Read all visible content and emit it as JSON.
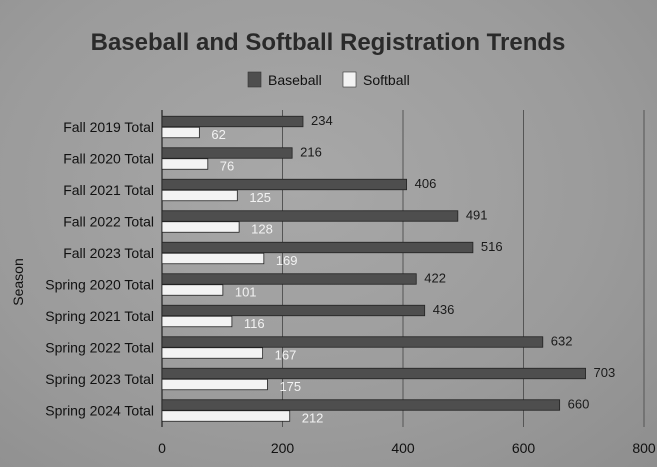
{
  "chart_data": {
    "type": "bar",
    "orientation": "horizontal",
    "title": "Baseball and Softball Registration Trends",
    "ylabel": "Season",
    "xlabel": "",
    "xlim": [
      0,
      800
    ],
    "xticks": [
      "0",
      "200",
      "400",
      "600",
      "800"
    ],
    "legend_position": "top-center",
    "categories": [
      "Fall 2019 Total",
      "Fall 2020 Total",
      "Fall 2021 Total",
      "Fall 2022 Total",
      "Fall 2023 Total",
      "Spring 2020 Total",
      "Spring 2021 Total",
      "Spring 2022 Total",
      "Spring 2023 Total",
      "Spring 2024 Total"
    ],
    "series": [
      {
        "name": "Baseball",
        "color": "#4e4e4e",
        "values": [
          234,
          216,
          406,
          491,
          516,
          422,
          436,
          632,
          703,
          660
        ]
      },
      {
        "name": "Softball",
        "color": "#f3f3f3",
        "values": [
          62,
          76,
          125,
          128,
          169,
          101,
          116,
          167,
          175,
          212
        ]
      }
    ]
  }
}
